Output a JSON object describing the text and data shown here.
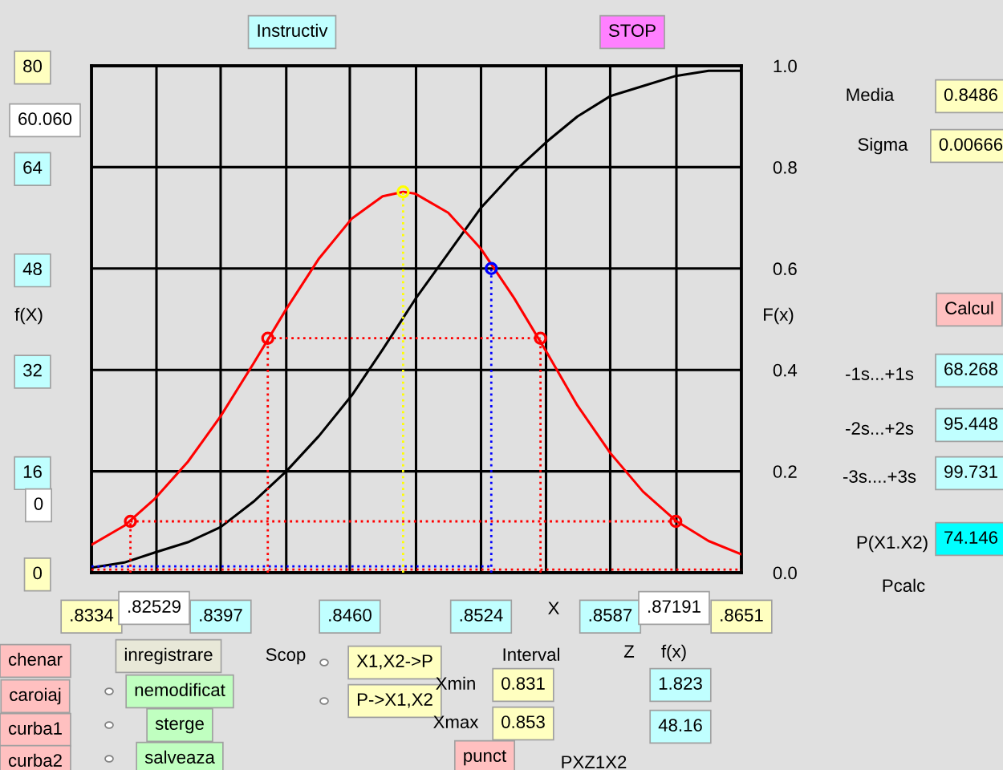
{
  "chart_data": {
    "type": "line",
    "ylabel": "f(X)",
    "y2label": "F(x)",
    "xlabel": "X",
    "xlim": [
      0.8334,
      0.8651
    ],
    "xticks": [
      {
        "value": 0.8334,
        "label": ".8334"
      },
      {
        "value": 0.83657,
        "label": null
      },
      {
        "value": 0.8397,
        "label": ".8397"
      },
      {
        "value": 0.8429,
        "label": null
      },
      {
        "value": 0.846,
        "label": ".8460"
      },
      {
        "value": 0.84923,
        "label": null
      },
      {
        "value": 0.8524,
        "label": ".8524"
      },
      {
        "value": 0.85557,
        "label": null
      },
      {
        "value": 0.8587,
        "label": ".8587"
      },
      {
        "value": 0.86193,
        "label": null
      },
      {
        "value": 0.8651,
        "label": ".8651"
      }
    ],
    "ylim": [
      0,
      80
    ],
    "yticks": [
      0,
      16,
      32,
      48,
      64,
      80
    ],
    "y2lim": [
      0,
      1.0
    ],
    "y2ticks": [
      {
        "value": 0,
        "label": "0.0"
      },
      {
        "value": 0.2,
        "label": "0.2"
      },
      {
        "value": 0.4,
        "label": "0.4"
      },
      {
        "value": 0.6,
        "label": "0.6"
      },
      {
        "value": 0.8,
        "label": "0.8"
      },
      {
        "value": 1.0,
        "label": "1.0"
      }
    ],
    "grid": true,
    "legend": false,
    "series": [
      {
        "color": "#ff0000",
        "marker": "none",
        "line_style": "solid",
        "x": [
          0.8334,
          0.835,
          0.8365,
          0.8381,
          0.8397,
          0.8413,
          0.8429,
          0.8445,
          0.8461,
          0.8476,
          0.8486,
          0.8492,
          0.8508,
          0.8524,
          0.854,
          0.8556,
          0.8571,
          0.8587,
          0.8603,
          0.8619,
          0.8635,
          0.8651
        ],
        "values": [
          4.4,
          7.4,
          11.7,
          17.5,
          24.7,
          33.0,
          41.6,
          49.6,
          55.9,
          59.4,
          60.1,
          59.8,
          56.8,
          51.1,
          43.4,
          34.8,
          26.4,
          18.9,
          12.8,
          8.2,
          5.0,
          2.9
        ]
      },
      {
        "type": "line",
        "axis": "y2",
        "color": "#000000",
        "marker": "none",
        "line_style": "solid",
        "x": [
          0.8334,
          0.835,
          0.8365,
          0.8381,
          0.8397,
          0.8413,
          0.8429,
          0.8445,
          0.8461,
          0.8476,
          0.8492,
          0.8508,
          0.8524,
          0.854,
          0.8556,
          0.8571,
          0.8587,
          0.8603,
          0.8619,
          0.8635,
          0.8651
        ],
        "values": [
          0.01,
          0.02,
          0.04,
          0.06,
          0.09,
          0.14,
          0.2,
          0.27,
          0.35,
          0.44,
          0.54,
          0.63,
          0.72,
          0.79,
          0.85,
          0.9,
          0.94,
          0.96,
          0.98,
          0.99,
          0.99
        ]
      },
      {
        "type": "line",
        "color": "#ff0000",
        "marker": "none",
        "line_style": "dotted",
        "x": [
          0.8353,
          0.8353
        ],
        "values": [
          0,
          8.1
        ]
      },
      {
        "type": "line",
        "color": "#ff0000",
        "marker": "none",
        "line_style": "dotted",
        "x": [
          0.8353,
          0.8619
        ],
        "values": [
          8.1,
          8.1
        ]
      },
      {
        "type": "line",
        "color": "#ff0000",
        "marker": "none",
        "line_style": "dotted",
        "x": [
          0.842,
          0.842
        ],
        "values": [
          0,
          37
        ]
      },
      {
        "type": "line",
        "color": "#ff0000",
        "marker": "none",
        "line_style": "dotted",
        "x": [
          0.842,
          0.8553
        ],
        "values": [
          37,
          37
        ]
      },
      {
        "type": "line",
        "color": "#ff0000",
        "marker": "none",
        "line_style": "dotted",
        "x": [
          0.8553,
          0.8553
        ],
        "values": [
          0,
          37
        ]
      },
      {
        "type": "line",
        "color": "#ffff00",
        "marker": "none",
        "line_style": "dotted",
        "x": [
          0.8486,
          0.8486
        ],
        "values": [
          0,
          60.1
        ]
      },
      {
        "type": "line",
        "color": "#0000ff",
        "marker": "none",
        "line_style": "dotted",
        "x": [
          0.8529,
          0.8529
        ],
        "values": [
          0,
          48
        ]
      },
      {
        "type": "line",
        "color": "#0000ff",
        "marker": "none",
        "line_style": "dotted",
        "x": [
          0.8334,
          0.8529
        ],
        "values": [
          1,
          1
        ]
      },
      {
        "type": "line",
        "color": "#ff0000",
        "marker": "none",
        "line_style": "dotted",
        "x": [
          0.8334,
          0.8651
        ],
        "values": [
          0.5,
          0.5
        ]
      },
      {
        "type": "scatter",
        "color": "#ff0000",
        "marker": "circle",
        "x": [
          0.8353,
          0.842,
          0.8553,
          0.8619
        ],
        "values": [
          8.1,
          37,
          37,
          8.1
        ]
      },
      {
        "type": "scatter",
        "color": "#ffff00",
        "marker": "circle",
        "x": [
          0.8486
        ],
        "values": [
          60.1
        ]
      },
      {
        "type": "scatter",
        "color": "#0000ff",
        "marker": "circle",
        "x": [
          0.8529
        ],
        "values": [
          48
        ]
      }
    ],
    "annotations": [
      "Instructiv",
      "STOP",
      "60.060",
      "0",
      "Media",
      "0.8486",
      "Sigma",
      "0.00666",
      "Calcul",
      "-1s...+1s",
      "68.268",
      "-2s...+2s",
      "95.448",
      "-3s....+3s",
      "99.731",
      "P(X1.X2)",
      "74.146",
      "Pcalc",
      ".82529",
      ".87191",
      "chenar",
      "caroiaj",
      "curba1",
      "curba2",
      "inregistrare",
      "nemodificat",
      "sterge",
      "salveaza",
      "Scop",
      "X1,X2->P",
      "P->X1,X2",
      "Interval",
      "Xmin",
      "0.831",
      "Xmax",
      "0.853",
      "punct",
      "Z",
      "f(x)",
      "1.823",
      "48.16",
      "PXZ1X2"
    ]
  }
}
